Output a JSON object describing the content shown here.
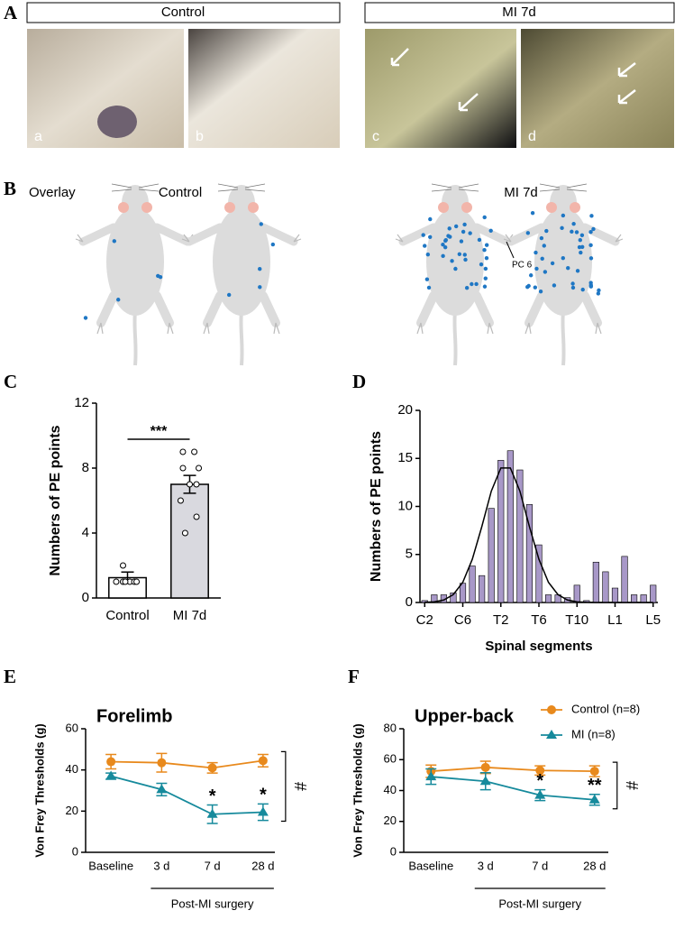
{
  "panels": {
    "A": {
      "label": "A",
      "groups": [
        "Control",
        "MI 7d"
      ],
      "photos": [
        "a",
        "b",
        "c",
        "d"
      ]
    },
    "B": {
      "label": "B",
      "overlay": "Overlay",
      "groups": [
        "Control",
        "MI 7d"
      ],
      "annotation": "PC 6"
    }
  },
  "chart_data": [
    {
      "panel": "C",
      "type": "bar",
      "categories": [
        "Control",
        "MI 7d"
      ],
      "values": [
        1.25,
        7
      ],
      "errors": [
        0.35,
        0.55
      ],
      "colors": [
        "#ffffff",
        "#d9d9df"
      ],
      "points": [
        [
          1,
          1,
          1,
          2,
          1,
          1,
          1
        ],
        [
          9,
          9,
          8,
          8,
          7,
          7,
          6,
          5,
          4
        ]
      ],
      "ylabel": "Numbers of PE points",
      "ylim": [
        0,
        12
      ],
      "yticks": [
        0,
        4,
        8,
        12
      ],
      "significance": "***"
    },
    {
      "panel": "D",
      "type": "bar",
      "categories": [
        "C2",
        null,
        null,
        null,
        "C6",
        null,
        null,
        null,
        "T2",
        null,
        null,
        null,
        "T6",
        null,
        null,
        null,
        "T10",
        null,
        null,
        null,
        "L1",
        null,
        null,
        null,
        "L5"
      ],
      "values": [
        0.2,
        0.8,
        0.8,
        1,
        2,
        3.8,
        2.8,
        9.8,
        14.8,
        15.8,
        13.8,
        10.2,
        6,
        0.8,
        0.8,
        0.5,
        1.8,
        0.2,
        4.2,
        3.2,
        1.5,
        4.8,
        0.8,
        0.8,
        1.8
      ],
      "color": "#a898c8",
      "fit": [
        0.02,
        0.07,
        0.26,
        0.82,
        2.1,
        4.5,
        7.9,
        11.6,
        14.0,
        14.0,
        11.6,
        7.9,
        4.5,
        2.1,
        0.82,
        0.26,
        0.07,
        0.02,
        0,
        0,
        0,
        0,
        0,
        0,
        0
      ],
      "xlabel": "Spinal segments",
      "ylabel": "Numbers of PE points",
      "ylim": [
        0,
        20
      ],
      "yticks": [
        0,
        5,
        10,
        15,
        20
      ]
    },
    {
      "panel": "E",
      "type": "line",
      "title": "Forelimb",
      "categories": [
        "Baseline",
        "3 d",
        "7 d",
        "28 d"
      ],
      "series": [
        {
          "color": "#e8891c",
          "marker": "circle",
          "values": [
            44,
            43.5,
            41,
            44.5
          ],
          "errors": [
            3.5,
            4.5,
            2.5,
            3
          ]
        },
        {
          "color": "#168a9c",
          "marker": "triangle",
          "values": [
            37,
            30.5,
            18.5,
            19.5
          ],
          "errors": [
            1.5,
            3,
            4.5,
            4
          ],
          "significance": [
            null,
            null,
            "*",
            "*"
          ]
        }
      ],
      "group_significance": "#",
      "xlabel": "Post-MI surgery",
      "ylabel": "Von Frey Thresholds (g)",
      "ylim": [
        0,
        60
      ],
      "yticks": [
        0,
        20,
        40,
        60
      ]
    },
    {
      "panel": "F",
      "type": "line",
      "title": "Upper-back",
      "categories": [
        "Baseline",
        "3 d",
        "7 d",
        "28 d"
      ],
      "series": [
        {
          "name": "Control (n=8)",
          "color": "#e8891c",
          "marker": "circle",
          "values": [
            52.5,
            55,
            53,
            52.5
          ],
          "errors": [
            4,
            4,
            3,
            3.5
          ]
        },
        {
          "name": "MI  (n=8)",
          "color": "#168a9c",
          "marker": "triangle",
          "values": [
            49,
            46,
            37,
            34
          ],
          "errors": [
            5,
            5.5,
            3.5,
            3.5
          ],
          "significance": [
            null,
            null,
            "*",
            "**"
          ]
        }
      ],
      "group_significance": "#",
      "legend": "upper right",
      "xlabel": "Post-MI surgery",
      "ylabel": "Von Frey Thresholds (g)",
      "ylim": [
        0,
        80
      ],
      "yticks": [
        0,
        20,
        40,
        60,
        80
      ]
    }
  ]
}
